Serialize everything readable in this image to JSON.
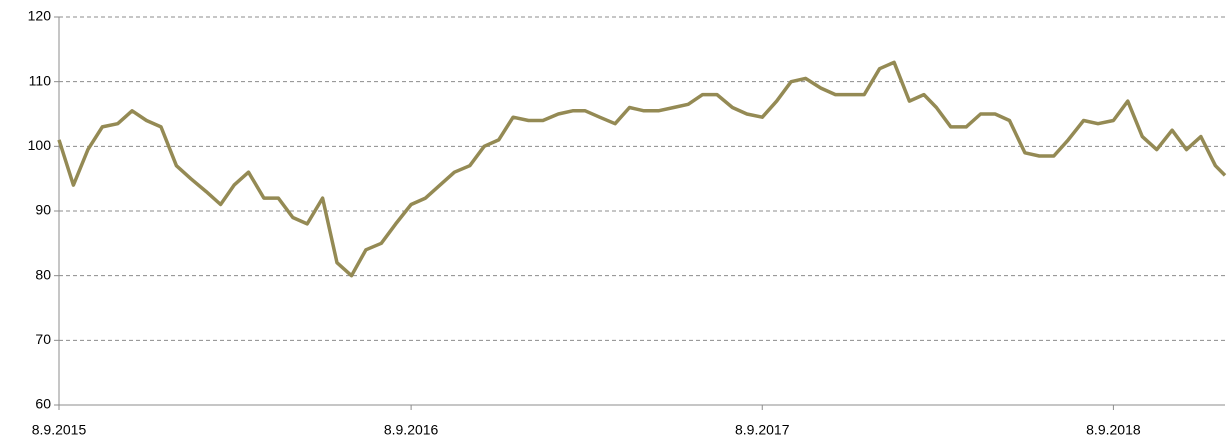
{
  "chart_data": {
    "type": "line",
    "x": [
      "2015-09-08",
      "2015-09-23",
      "2015-10-08",
      "2015-10-23",
      "2015-11-08",
      "2015-11-23",
      "2015-12-08",
      "2015-12-23",
      "2016-01-08",
      "2016-01-23",
      "2016-02-08",
      "2016-02-23",
      "2016-03-08",
      "2016-03-23",
      "2016-04-08",
      "2016-04-23",
      "2016-05-08",
      "2016-05-23",
      "2016-06-08",
      "2016-06-23",
      "2016-07-08",
      "2016-07-23",
      "2016-08-08",
      "2016-08-23",
      "2016-09-08",
      "2016-09-23",
      "2016-10-08",
      "2016-10-23",
      "2016-11-08",
      "2016-11-23",
      "2016-12-08",
      "2016-12-23",
      "2017-01-08",
      "2017-01-23",
      "2017-02-08",
      "2017-02-23",
      "2017-03-08",
      "2017-03-23",
      "2017-04-08",
      "2017-04-23",
      "2017-05-08",
      "2017-05-23",
      "2017-06-08",
      "2017-06-23",
      "2017-07-08",
      "2017-07-23",
      "2017-08-08",
      "2017-08-23",
      "2017-09-08",
      "2017-09-23",
      "2017-10-08",
      "2017-10-23",
      "2017-11-08",
      "2017-11-23",
      "2017-12-08",
      "2017-12-23",
      "2018-01-08",
      "2018-01-23",
      "2018-02-08",
      "2018-02-23",
      "2018-03-08",
      "2018-03-23",
      "2018-04-08",
      "2018-04-23",
      "2018-05-08",
      "2018-05-23",
      "2018-06-08",
      "2018-06-23",
      "2018-07-08",
      "2018-07-23",
      "2018-08-08",
      "2018-08-23",
      "2018-09-08",
      "2018-09-23",
      "2018-10-08",
      "2018-10-23",
      "2018-11-08",
      "2018-11-23",
      "2018-12-08",
      "2018-12-23",
      "2019-01-02"
    ],
    "series": [
      {
        "color": "#948a54",
        "values": [
          101,
          94,
          99.5,
          103,
          103.5,
          105.5,
          104,
          103,
          97,
          95,
          93,
          91,
          94,
          96,
          92,
          92,
          89,
          88,
          92,
          82,
          80,
          84,
          85,
          88,
          91,
          92,
          94,
          96,
          97,
          100,
          101,
          104.5,
          104,
          104,
          105,
          105.5,
          105.5,
          104.5,
          103.5,
          106,
          105.5,
          105.5,
          106,
          106.5,
          108,
          108,
          106,
          105,
          104.5,
          107,
          110,
          110.5,
          109,
          108,
          108,
          108,
          112,
          113,
          107,
          108,
          106,
          103,
          103,
          105,
          105,
          104,
          99,
          98.5,
          98.5,
          101,
          104,
          103.5,
          104,
          107,
          101.5,
          99.5,
          102.5,
          99.5,
          101.5,
          97,
          95.5
        ]
      }
    ],
    "xlim": [
      "2015-09-08",
      "2019-01-02"
    ],
    "xticks": [
      {
        "value": "2015-09-08",
        "label": "8.9.2015"
      },
      {
        "value": "2016-09-08",
        "label": "8.9.2016"
      },
      {
        "value": "2017-09-08",
        "label": "8.9.2017"
      },
      {
        "value": "2018-09-08",
        "label": "8.9.2018"
      }
    ],
    "ylim": [
      60,
      120
    ],
    "yticks": [
      60,
      70,
      80,
      90,
      100,
      110,
      120
    ],
    "grid": true
  }
}
